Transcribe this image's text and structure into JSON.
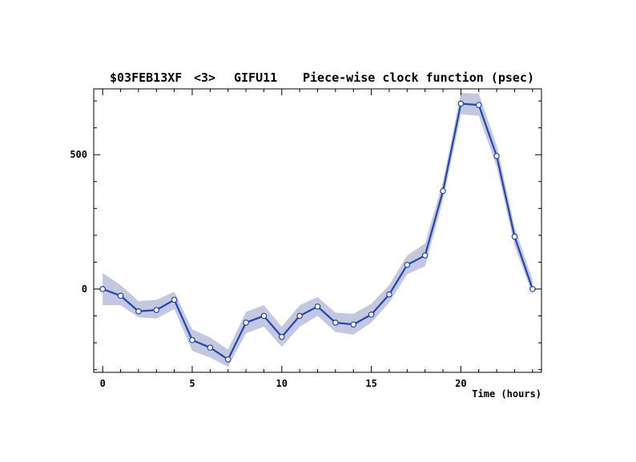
{
  "chart_data": {
    "type": "line",
    "title_parts": [
      "$03FEB13XF",
      "<3>",
      "GIFU11",
      "Piece-wise clock function (psec)"
    ],
    "xlabel": "Time (hours)",
    "ylabel": "",
    "xlim": [
      -0.5,
      24.5
    ],
    "ylim": [
      -310,
      745
    ],
    "xticks": [
      0,
      5,
      10,
      15,
      20
    ],
    "yticks": [
      0,
      500
    ],
    "x_minor_step": 1,
    "y_minor_step": 100,
    "grid": false,
    "colors": {
      "line": "#2244bb",
      "band": "#c3c8df",
      "marker_fill": "#ffffff"
    },
    "series": [
      {
        "x": [
          0,
          1,
          2,
          3,
          4,
          5,
          6,
          7,
          8,
          9,
          10,
          11,
          12,
          13,
          14,
          15,
          16,
          17,
          18,
          19,
          20,
          21,
          22,
          23,
          24
        ],
        "y": [
          0,
          -25,
          -83,
          -78,
          -40,
          -190,
          -218,
          -262,
          -125,
          -100,
          -178,
          -100,
          -65,
          -125,
          -132,
          -95,
          -20,
          90,
          125,
          365,
          690,
          685,
          495,
          195,
          0
        ],
        "band_upper": [
          60,
          15,
          -45,
          -40,
          -10,
          -150,
          -180,
          -225,
          -85,
          -60,
          -140,
          -60,
          -30,
          -88,
          -92,
          -55,
          15,
          125,
          170,
          400,
          730,
          727,
          535,
          230,
          35
        ],
        "band_lower": [
          -60,
          -60,
          -105,
          -110,
          -75,
          -230,
          -255,
          -290,
          -165,
          -140,
          -215,
          -140,
          -100,
          -160,
          -170,
          -125,
          -50,
          55,
          85,
          330,
          650,
          645,
          455,
          160,
          -20
        ]
      }
    ]
  }
}
